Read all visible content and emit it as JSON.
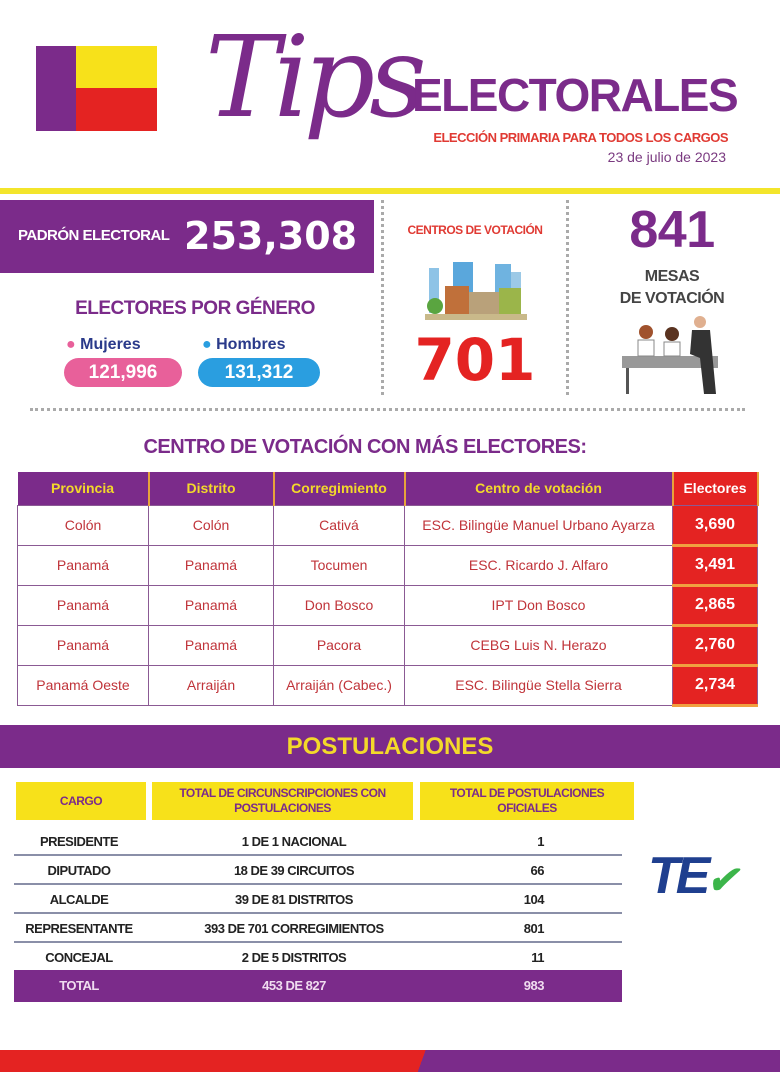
{
  "header": {
    "title_script": "Tips",
    "title": "ELECTORALES",
    "subtitle": "ELECCIÓN PRIMARIA PARA TODOS LOS CARGOS",
    "date": "23 de julio de 2023",
    "flag_colors": [
      "#7b2b8a",
      "#f7e11a",
      "#e42322"
    ]
  },
  "padron": {
    "label": "PADRÓN ELECTORAL",
    "value": "253,308"
  },
  "genero": {
    "title": "ELECTORES POR GÉNERO",
    "mujeres_label": "Mujeres",
    "mujeres_value": "121,996",
    "hombres_label": "Hombres",
    "hombres_value": "131,312"
  },
  "centros": {
    "label": "CENTROS DE VOTACIÓN",
    "value": "701",
    "icon": "buildings-icon"
  },
  "mesas": {
    "value": "841",
    "label1": "MESAS",
    "label2": "DE VOTACIÓN",
    "icon": "poll-workers-icon"
  },
  "centro_table": {
    "title": "CENTRO DE VOTACIÓN CON MÁS ELECTORES:",
    "headers": [
      "Provincia",
      "Distrito",
      "Corregimiento",
      "Centro de votación",
      "Electores"
    ],
    "rows": [
      [
        "Colón",
        "Colón",
        "Cativá",
        "ESC. Bilingüe Manuel Urbano Ayarza",
        "3,690"
      ],
      [
        "Panamá",
        "Panamá",
        "Tocumen",
        "ESC. Ricardo J. Alfaro",
        "3,491"
      ],
      [
        "Panamá",
        "Panamá",
        "Don Bosco",
        "IPT Don Bosco",
        "2,865"
      ],
      [
        "Panamá",
        "Panamá",
        "Pacora",
        "CEBG Luis N. Herazo",
        "2,760"
      ],
      [
        "Panamá Oeste",
        "Arraiján",
        "Arraiján (Cabec.)",
        "ESC. Bilingüe Stella Sierra",
        "2,734"
      ]
    ]
  },
  "postulaciones": {
    "title": "POSTULACIONES",
    "headers": [
      "CARGO",
      "TOTAL DE CIRCUNSCRIPCIONES CON POSTULACIONES",
      "TOTAL DE POSTULACIONES OFICIALES"
    ],
    "rows": [
      [
        "PRESIDENTE",
        "1 DE 1 NACIONAL",
        "1"
      ],
      [
        "DIPUTADO",
        "18 DE 39 CIRCUITOS",
        "66"
      ],
      [
        "ALCALDE",
        "39 DE 81 DISTRITOS",
        "104"
      ],
      [
        "REPRESENTANTE",
        "393 DE 701 CORREGIMIENTOS",
        "801"
      ],
      [
        "CONCEJAL",
        "2 DE 5 DISTRITOS",
        "11"
      ]
    ],
    "total": [
      "TOTAL",
      "453 DE 827",
      "983"
    ]
  },
  "logo": {
    "text": "TE"
  }
}
